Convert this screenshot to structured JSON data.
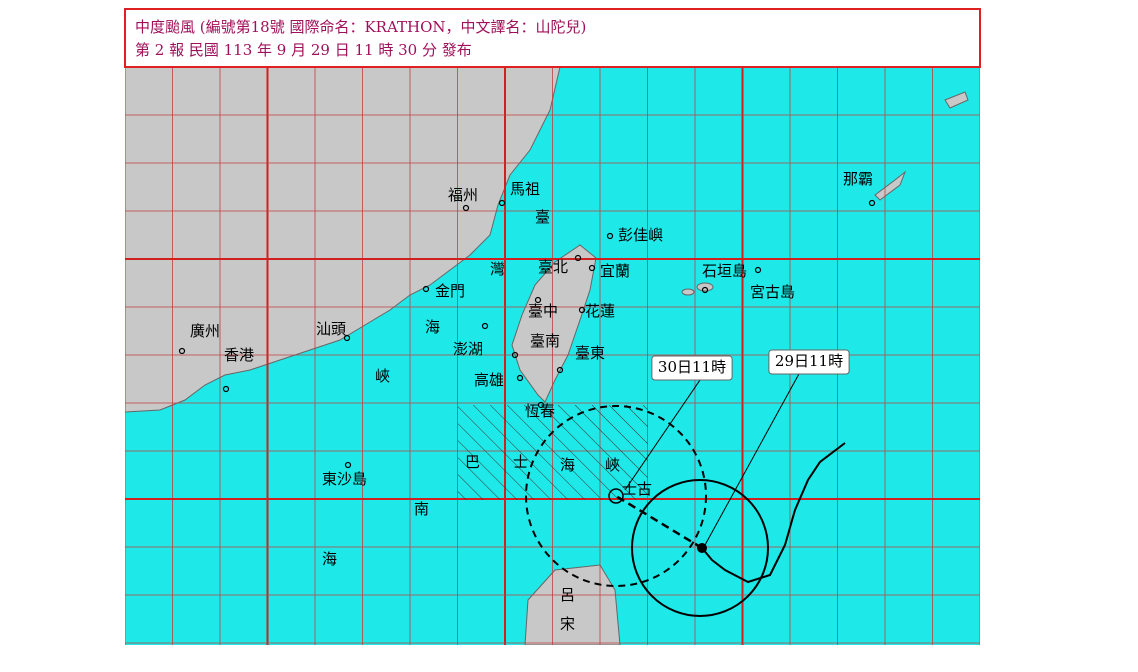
{
  "header": {
    "lines": [
      "中度颱風 (編號第18號 國際命名：KRATHON，中文譯名：山陀兒)",
      "第 2 報 民國 113 年 9 月 29 日 11 時 30 分 發布"
    ]
  },
  "places": [
    {
      "label": "福州"
    },
    {
      "label": "馬祖"
    },
    {
      "label": "臺"
    },
    {
      "label": "灣"
    },
    {
      "label": "海"
    },
    {
      "label": "峽"
    },
    {
      "label": "彭佳嶼"
    },
    {
      "label": "臺北"
    },
    {
      "label": "宜蘭"
    },
    {
      "label": "金門"
    },
    {
      "label": "臺中"
    },
    {
      "label": "花蓮"
    },
    {
      "label": "澎湖"
    },
    {
      "label": "臺南"
    },
    {
      "label": "臺東"
    },
    {
      "label": "高雄"
    },
    {
      "label": "恆春"
    },
    {
      "label": "汕頭"
    },
    {
      "label": "廣州"
    },
    {
      "label": "香港"
    },
    {
      "label": "東沙島"
    },
    {
      "label": "南"
    },
    {
      "label": "海"
    },
    {
      "label": "巴"
    },
    {
      "label": "士"
    },
    {
      "label": "海"
    },
    {
      "label": "峽"
    },
    {
      "label": "士古"
    },
    {
      "label": "石垣島"
    },
    {
      "label": "宮古島"
    },
    {
      "label": "那霸"
    },
    {
      "label": "呂"
    },
    {
      "label": "宋"
    }
  ],
  "callouts": [
    {
      "label": "30日11時"
    },
    {
      "label": "29日11時"
    }
  ]
}
